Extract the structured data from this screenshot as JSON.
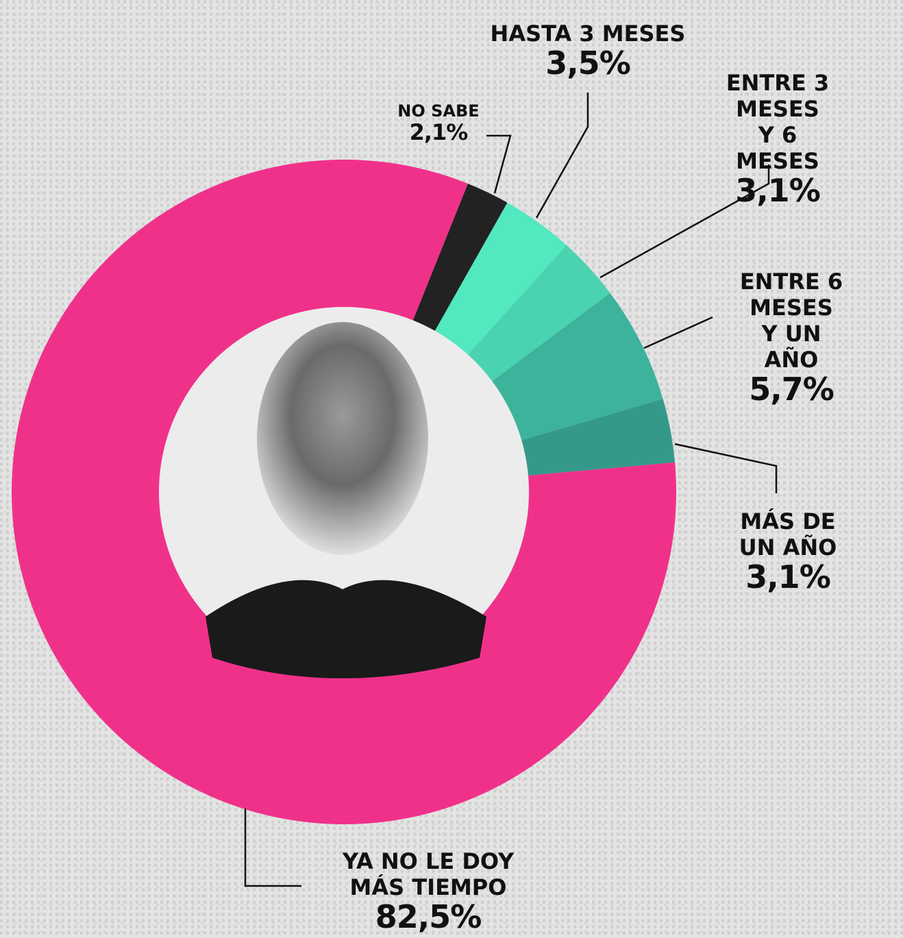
{
  "chart_data": {
    "type": "donut",
    "categories": [
      "NO SABE",
      "HASTA 3 MESES",
      "ENTRE 3 MESES\nY 6 MESES",
      "ENTRE 6 MESES\nY UN AÑO",
      "MÁS DE UN AÑO",
      "YA NO LE DOY\nMÁS TIEMPO"
    ],
    "values": [
      2.1,
      3.5,
      3.1,
      5.7,
      3.1,
      82.5
    ],
    "value_labels": [
      "2,1%",
      "3,5%",
      "3,1%",
      "5,7%",
      "3,1%",
      "82,5%"
    ],
    "colors": [
      "#222222",
      "#52e8c0",
      "#4bd3b1",
      "#3db39c",
      "#35998a",
      "#f0318a"
    ]
  }
}
